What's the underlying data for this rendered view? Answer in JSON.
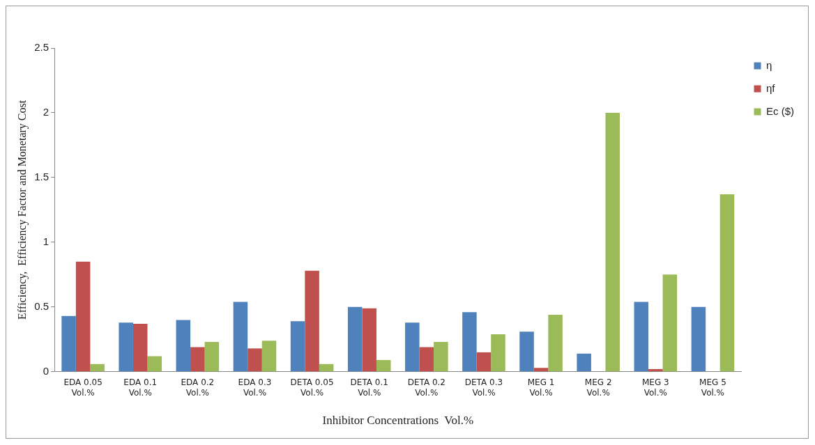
{
  "chart_data": {
    "type": "bar",
    "xlabel": "Inhibitor Concentrations  Vol.%",
    "ylabel": "Efficiency,  Efficiency Factor and Monetary Cost",
    "categories": [
      "EDA 0.05 Vol.%",
      "EDA 0.1 Vol.%",
      "EDA 0.2 Vol.%",
      "EDA 0.3 Vol.%",
      "DETA 0.05 Vol.%",
      "DETA 0.1 Vol.%",
      "DETA 0.2 Vol.%",
      "DETA 0.3 Vol.%",
      "MEG 1 Vol.%",
      "MEG 2 Vol.%",
      "MEG 3 Vol.%",
      "MEG 5 Vol.%"
    ],
    "series": [
      {
        "name": "η",
        "color": "#4f81bd",
        "values": [
          0.43,
          0.38,
          0.4,
          0.54,
          0.39,
          0.5,
          0.38,
          0.46,
          0.31,
          0.14,
          0.54,
          0.5
        ]
      },
      {
        "name": "ηf",
        "color": "#c0504d",
        "values": [
          0.85,
          0.37,
          0.19,
          0.18,
          0.78,
          0.49,
          0.19,
          0.15,
          0.03,
          0,
          0.02,
          0
        ]
      },
      {
        "name": "Ec ($)",
        "color": "#9bbb59",
        "values": [
          0.06,
          0.12,
          0.23,
          0.24,
          0.06,
          0.09,
          0.23,
          0.29,
          0.44,
          2.0,
          0.75,
          1.37
        ]
      }
    ],
    "ylim": [
      0,
      2.5
    ],
    "yticks": [
      0,
      0.5,
      1,
      1.5,
      2,
      2.5
    ],
    "grid": false,
    "legend": "top right"
  }
}
